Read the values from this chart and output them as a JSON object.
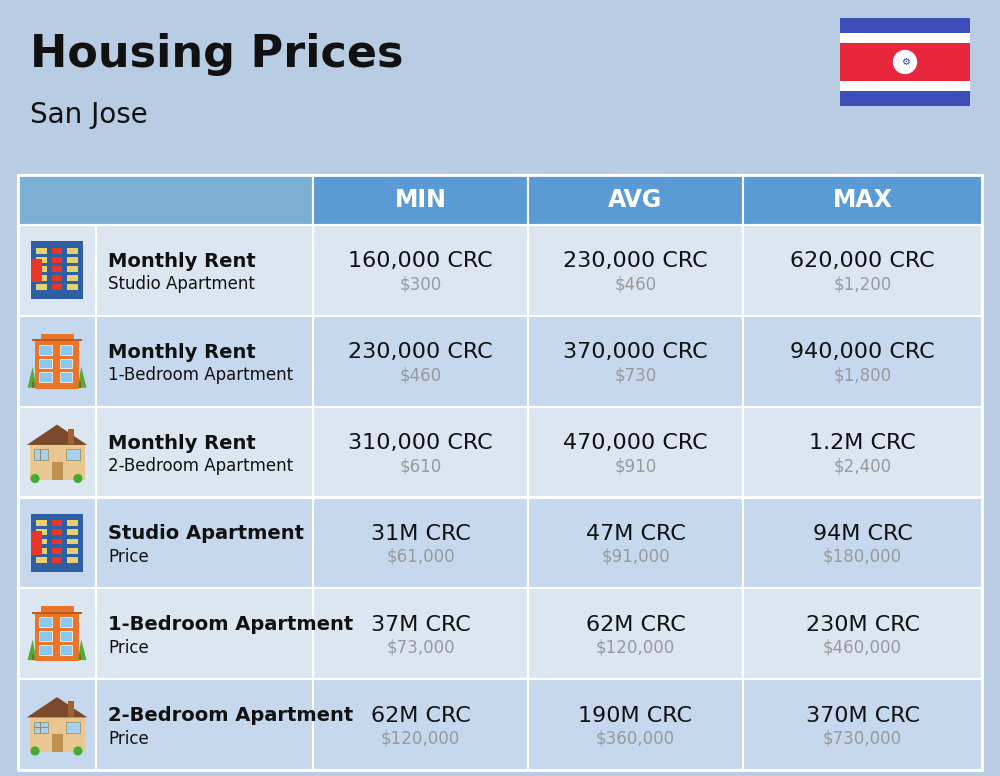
{
  "title": "Housing Prices",
  "subtitle": "San Jose",
  "background_color": "#b8cce4",
  "header_bg_color": "#5b9bd5",
  "header_text_color": "#ffffff",
  "row_bg_light": "#dce6f1",
  "row_bg_dark": "#c5d8ed",
  "col_headers": [
    "MIN",
    "AVG",
    "MAX"
  ],
  "rows": [
    {
      "label_bold": "Monthly Rent",
      "label_sub": "Studio Apartment",
      "icon_type": "blue_red",
      "min_crc": "160,000 CRC",
      "min_usd": "$300",
      "avg_crc": "230,000 CRC",
      "avg_usd": "$460",
      "max_crc": "620,000 CRC",
      "max_usd": "$1,200"
    },
    {
      "label_bold": "Monthly Rent",
      "label_sub": "1-Bedroom Apartment",
      "icon_type": "orange_green",
      "min_crc": "230,000 CRC",
      "min_usd": "$460",
      "avg_crc": "370,000 CRC",
      "avg_usd": "$730",
      "max_crc": "940,000 CRC",
      "max_usd": "$1,800"
    },
    {
      "label_bold": "Monthly Rent",
      "label_sub": "2-Bedroom Apartment",
      "icon_type": "tan_house",
      "min_crc": "310,000 CRC",
      "min_usd": "$610",
      "avg_crc": "470,000 CRC",
      "avg_usd": "$910",
      "max_crc": "1.2M CRC",
      "max_usd": "$2,400"
    },
    {
      "label_bold": "Studio Apartment",
      "label_sub": "Price",
      "icon_type": "blue_red",
      "min_crc": "31M CRC",
      "min_usd": "$61,000",
      "avg_crc": "47M CRC",
      "avg_usd": "$91,000",
      "max_crc": "94M CRC",
      "max_usd": "$180,000"
    },
    {
      "label_bold": "1-Bedroom Apartment",
      "label_sub": "Price",
      "icon_type": "orange_green",
      "min_crc": "37M CRC",
      "min_usd": "$73,000",
      "avg_crc": "62M CRC",
      "avg_usd": "$120,000",
      "max_crc": "230M CRC",
      "max_usd": "$460,000"
    },
    {
      "label_bold": "2-Bedroom Apartment",
      "label_sub": "Price",
      "icon_type": "tan_house",
      "min_crc": "62M CRC",
      "min_usd": "$120,000",
      "avg_crc": "190M CRC",
      "avg_usd": "$360,000",
      "max_crc": "370M CRC",
      "max_usd": "$730,000"
    }
  ],
  "divider_color": "#ffffff",
  "text_dark": "#111111",
  "text_gray": "#999999",
  "crc_fontsize": 16,
  "usd_fontsize": 12,
  "label_bold_fontsize": 14,
  "label_sub_fontsize": 12,
  "header_fontsize": 17
}
